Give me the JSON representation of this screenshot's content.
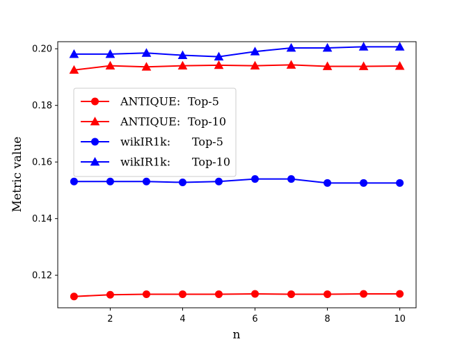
{
  "chart_data": {
    "type": "line",
    "xlabel": "n",
    "ylabel": "Metric value",
    "xlim": [
      0.55,
      10.45
    ],
    "ylim": [
      0.1085,
      0.2025
    ],
    "x_ticks": [
      2,
      4,
      6,
      8,
      10
    ],
    "x_tick_labels": [
      "2",
      "4",
      "6",
      "8",
      "10"
    ],
    "y_ticks": [
      0.12,
      0.14,
      0.16,
      0.18,
      0.2
    ],
    "y_tick_labels": [
      "0.12",
      "0.14",
      "0.16",
      "0.18",
      "0.20"
    ],
    "grid": false,
    "legend_position": "upper-left",
    "x": [
      1,
      2,
      3,
      4,
      5,
      6,
      7,
      8,
      9,
      10
    ],
    "series": [
      {
        "name": "ANTIQUE: Top-5",
        "dataset": "ANTIQUE:",
        "metric": "Top-5",
        "color": "#ff0000",
        "marker": "circle",
        "values": [
          0.1125,
          0.1131,
          0.1133,
          0.1133,
          0.1133,
          0.1134,
          0.1133,
          0.1133,
          0.1134,
          0.1134
        ]
      },
      {
        "name": "ANTIQUE: Top-10",
        "dataset": "ANTIQUE:",
        "metric": "Top-10",
        "color": "#ff0000",
        "marker": "triangle",
        "values": [
          0.1925,
          0.194,
          0.1936,
          0.194,
          0.1942,
          0.194,
          0.1943,
          0.1938,
          0.1938,
          0.1939
        ]
      },
      {
        "name": "wikIR1k: Top-5",
        "dataset": "wikIR1k:",
        "metric": "Top-5",
        "color": "#0000ff",
        "marker": "circle",
        "values": [
          0.1531,
          0.1531,
          0.1531,
          0.1528,
          0.1531,
          0.154,
          0.154,
          0.1526,
          0.1526,
          0.1526
        ]
      },
      {
        "name": "wikIR1k: Top-10",
        "dataset": "wikIR1k:",
        "metric": "Top-10",
        "color": "#0000ff",
        "marker": "triangle",
        "values": [
          0.1981,
          0.1981,
          0.1985,
          0.1977,
          0.1972,
          0.199,
          0.2003,
          0.2003,
          0.2007,
          0.2007
        ]
      }
    ]
  }
}
